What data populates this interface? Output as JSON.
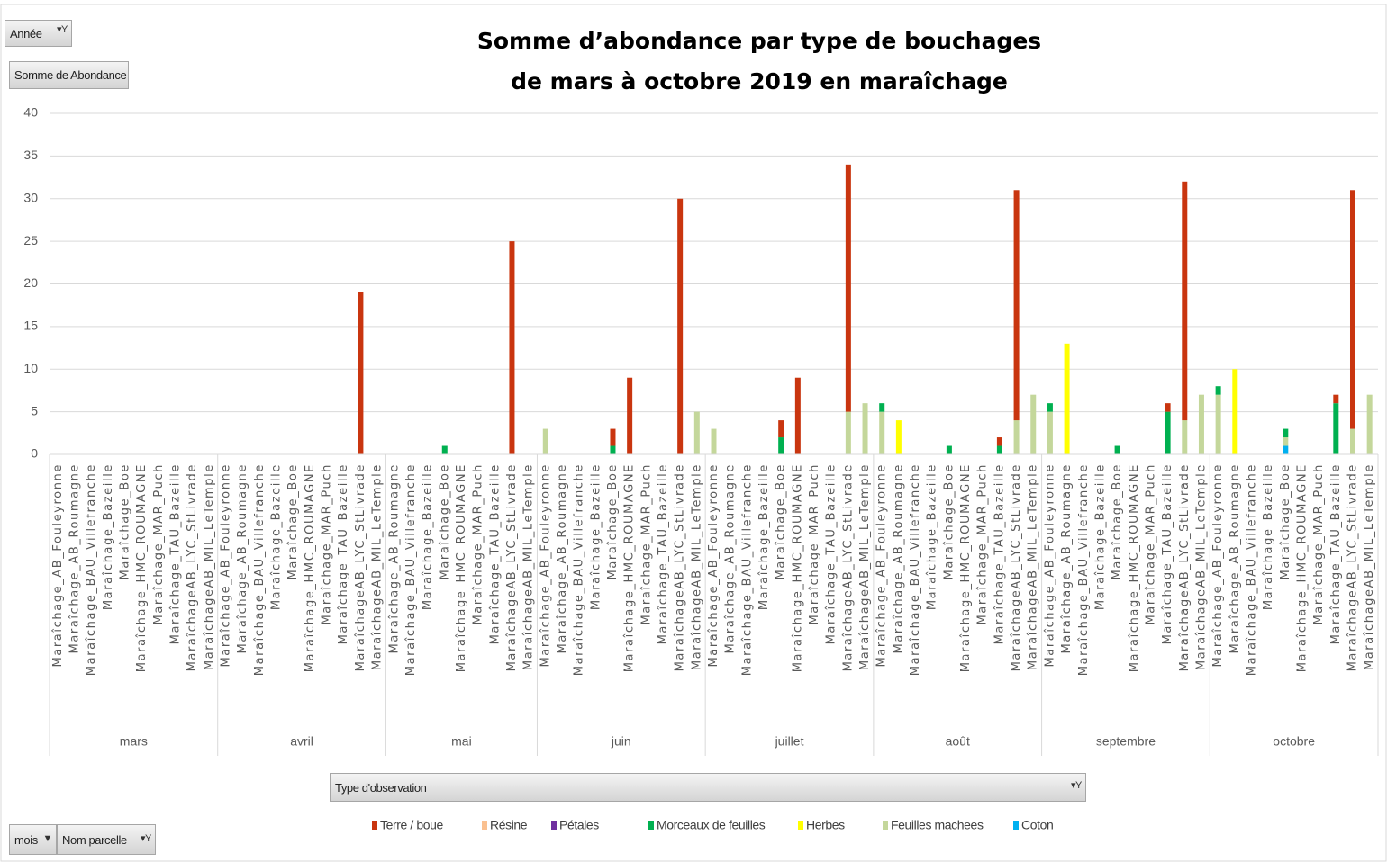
{
  "controls": {
    "year": "Année",
    "value_field": "Somme de Abondance",
    "legend_field": "Type d'observation",
    "row_fields": [
      "mois",
      "Nom parcelle"
    ]
  },
  "chart_data": {
    "type": "stacked_bar",
    "title": [
      "Somme d’abondance par type de bouchages",
      "de mars à octobre 2019 en maraîchage"
    ],
    "category_groups": [
      "mars",
      "avril",
      "mai",
      "juin",
      "juillet",
      "août",
      "septembre",
      "octobre"
    ],
    "categories": [
      [
        "Maraîchage_AB_Fouleyronne",
        "Maraîchage_AB_Roumagne",
        "Maraîchage_BAU_Villefranche",
        "Maraîchage_Bazeille",
        "Maraîchage_Boe",
        "Maraîchage_HMC_ROUMAGNE",
        "Maraîchage_MAR_Puch",
        "Maraîchage_TAU_Bazeille",
        "MaraîchageAB_LYC_StLivrade",
        "MaraîchageAB_MIL_LeTemple"
      ],
      [
        "Maraîchage_AB_Fouleyronne",
        "Maraîchage_AB_Roumagne",
        "Maraîchage_BAU_Villefranche",
        "Maraîchage_Bazeille",
        "Maraîchage_Boe",
        "Maraîchage_HMC_ROUMAGNE",
        "Maraîchage_MAR_Puch",
        "Maraîchage_TAU_Bazeille",
        "MaraîchageAB_LYC_StLivrade",
        "MaraîchageAB_MIL_LeTemple"
      ],
      [
        "Maraîchage_AB_Roumagne",
        "Maraîchage_BAU_Villefranche",
        "Maraîchage_Bazeille",
        "Maraîchage_Boe",
        "Maraîchage_HMC_ROUMAGNE",
        "Maraîchage_MAR_Puch",
        "Maraîchage_TAU_Bazeille",
        "MaraîchageAB_LYC_StLivrade",
        "MaraîchageAB_MIL_LeTemple"
      ],
      [
        "Maraîchage_AB_Fouleyronne",
        "Maraîchage_AB_Roumagne",
        "Maraîchage_BAU_Villefranche",
        "Maraîchage_Bazeille",
        "Maraîchage_Boe",
        "Maraîchage_HMC_ROUMAGNE",
        "Maraîchage_MAR_Puch",
        "Maraîchage_TAU_Bazeille",
        "MaraîchageAB_LYC_StLivrade",
        "MaraîchageAB_MIL_LeTemple"
      ],
      [
        "Maraîchage_AB_Fouleyronne",
        "Maraîchage_AB_Roumagne",
        "Maraîchage_BAU_Villefranche",
        "Maraîchage_Bazeille",
        "Maraîchage_Boe",
        "Maraîchage_HMC_ROUMAGNE",
        "Maraîchage_MAR_Puch",
        "Maraîchage_TAU_Bazeille",
        "MaraîchageAB_LYC_StLivrade",
        "MaraîchageAB_MIL_LeTemple"
      ],
      [
        "Maraîchage_AB_Fouleyronne",
        "Maraîchage_AB_Roumagne",
        "Maraîchage_BAU_Villefranche",
        "Maraîchage_Bazeille",
        "Maraîchage_Boe",
        "Maraîchage_HMC_ROUMAGNE",
        "Maraîchage_MAR_Puch",
        "Maraîchage_TAU_Bazeille",
        "MaraîchageAB_LYC_StLivrade",
        "MaraîchageAB_MIL_LeTemple"
      ],
      [
        "Maraîchage_AB_Fouleyronne",
        "Maraîchage_AB_Roumagne",
        "Maraîchage_BAU_Villefranche",
        "Maraîchage_Bazeille",
        "Maraîchage_Boe",
        "Maraîchage_HMC_ROUMAGNE",
        "Maraîchage_MAR_Puch",
        "Maraîchage_TAU_Bazeille",
        "MaraîchageAB_LYC_StLivrade",
        "MaraîchageAB_MIL_LeTemple"
      ],
      [
        "Maraîchage_AB_Fouleyronne",
        "Maraîchage_AB_Roumagne",
        "Maraîchage_BAU_Villefranche",
        "Maraîchage_Bazeille",
        "Maraîchage_Boe",
        "Maraîchage_HMC_ROUMAGNE",
        "Maraîchage_MAR_Puch",
        "Maraîchage_TAU_Bazeille",
        "MaraîchageAB_LYC_StLivrade",
        "MaraîchageAB_MIL_LeTemple"
      ]
    ],
    "series": [
      {
        "name": "Terre / boue",
        "color": "#c9350f",
        "values": [
          [
            0,
            0,
            0,
            0,
            0,
            0,
            0,
            0,
            0,
            0
          ],
          [
            0,
            0,
            0,
            0,
            0,
            0,
            0,
            0,
            19,
            0
          ],
          [
            0,
            0,
            0,
            0,
            0,
            0,
            0,
            25,
            0
          ],
          [
            0,
            0,
            0,
            0,
            2,
            9,
            0,
            0,
            30,
            0
          ],
          [
            0,
            0,
            0,
            0,
            2,
            9,
            0,
            0,
            29,
            0
          ],
          [
            0,
            0,
            0,
            0,
            0,
            0,
            0,
            1,
            27,
            0
          ],
          [
            0,
            0,
            0,
            0,
            0,
            0,
            0,
            1,
            28,
            0
          ],
          [
            0,
            0,
            0,
            0,
            0,
            0,
            0,
            1,
            28,
            0
          ]
        ]
      },
      {
        "name": "Résine",
        "color": "#fac090",
        "values": [
          [
            0,
            0,
            0,
            0,
            0,
            0,
            0,
            0,
            0,
            0
          ],
          [
            0,
            0,
            0,
            0,
            0,
            0,
            0,
            0,
            0,
            0
          ],
          [
            0,
            0,
            0,
            0,
            0,
            0,
            0,
            0,
            0
          ],
          [
            0,
            0,
            0,
            0,
            0,
            0,
            0,
            0,
            0,
            0
          ],
          [
            0,
            0,
            0,
            0,
            0,
            0,
            0,
            0,
            0,
            0
          ],
          [
            0,
            0,
            0,
            0,
            0,
            0,
            0,
            0,
            0,
            0
          ],
          [
            0,
            0,
            0,
            0,
            0,
            0,
            0,
            0,
            0,
            0
          ],
          [
            0,
            0,
            0,
            0,
            0,
            0,
            0,
            0,
            0,
            0
          ]
        ]
      },
      {
        "name": "Pétales",
        "color": "#7030a0",
        "values": [
          [
            0,
            0,
            0,
            0,
            0,
            0,
            0,
            0,
            0,
            0
          ],
          [
            0,
            0,
            0,
            0,
            0,
            0,
            0,
            0,
            0,
            0
          ],
          [
            0,
            0,
            0,
            0,
            0,
            0,
            0,
            0,
            0
          ],
          [
            0,
            0,
            0,
            0,
            0,
            0,
            0,
            0,
            0,
            0
          ],
          [
            0,
            0,
            0,
            0,
            0,
            0,
            0,
            0,
            0,
            0
          ],
          [
            0,
            0,
            0,
            0,
            0,
            0,
            0,
            0,
            0,
            0
          ],
          [
            0,
            0,
            0,
            0,
            0,
            0,
            0,
            0,
            0,
            0
          ],
          [
            0,
            0,
            0,
            0,
            0,
            0,
            0,
            0,
            0,
            0
          ]
        ]
      },
      {
        "name": "Morceaux de feuilles",
        "color": "#00b050",
        "values": [
          [
            0,
            0,
            0,
            0,
            0,
            0,
            0,
            0,
            0,
            0
          ],
          [
            0,
            0,
            0,
            0,
            0,
            0,
            0,
            0,
            0,
            0
          ],
          [
            0,
            0,
            0,
            1,
            0,
            0,
            0,
            0,
            0
          ],
          [
            0,
            0,
            0,
            0,
            1,
            0,
            0,
            0,
            0,
            0
          ],
          [
            0,
            0,
            0,
            0,
            2,
            0,
            0,
            0,
            0,
            0
          ],
          [
            1,
            0,
            0,
            0,
            1,
            0,
            0,
            1,
            0,
            0
          ],
          [
            1,
            0,
            0,
            0,
            1,
            0,
            0,
            5,
            0,
            0
          ],
          [
            1,
            0,
            0,
            0,
            1,
            0,
            0,
            6,
            0,
            0
          ]
        ]
      },
      {
        "name": "Herbes",
        "color": "#ffff00",
        "values": [
          [
            0,
            0,
            0,
            0,
            0,
            0,
            0,
            0,
            0,
            0
          ],
          [
            0,
            0,
            0,
            0,
            0,
            0,
            0,
            0,
            0,
            0
          ],
          [
            0,
            0,
            0,
            0,
            0,
            0,
            0,
            0,
            0
          ],
          [
            0,
            0,
            0,
            0,
            0,
            0,
            0,
            0,
            0,
            0
          ],
          [
            0,
            0,
            0,
            0,
            0,
            0,
            0,
            0,
            0,
            0
          ],
          [
            0,
            4,
            0,
            0,
            0,
            0,
            0,
            0,
            0,
            0
          ],
          [
            0,
            13,
            0,
            0,
            0,
            0,
            0,
            0,
            0,
            0
          ],
          [
            0,
            10,
            0,
            0,
            0,
            0,
            0,
            0,
            0,
            0
          ]
        ]
      },
      {
        "name": "Feuilles machees",
        "color": "#c4d79b",
        "values": [
          [
            0,
            0,
            0,
            0,
            0,
            0,
            0,
            0,
            0,
            0
          ],
          [
            0,
            0,
            0,
            0,
            0,
            0,
            0,
            0,
            0,
            0
          ],
          [
            0,
            0,
            0,
            0,
            0,
            0,
            0,
            0,
            0
          ],
          [
            3,
            0,
            0,
            0,
            0,
            0,
            0,
            0,
            0,
            5
          ],
          [
            3,
            0,
            0,
            0,
            0,
            0,
            0,
            0,
            5,
            6
          ],
          [
            5,
            0,
            0,
            0,
            0,
            0,
            0,
            0,
            4,
            7
          ],
          [
            5,
            0,
            0,
            0,
            0,
            0,
            0,
            0,
            4,
            7
          ],
          [
            7,
            0,
            0,
            0,
            1,
            0,
            0,
            0,
            3,
            7
          ]
        ]
      },
      {
        "name": "Coton",
        "color": "#00b0f0",
        "values": [
          [
            0,
            0,
            0,
            0,
            0,
            0,
            0,
            0,
            0,
            0
          ],
          [
            0,
            0,
            0,
            0,
            0,
            0,
            0,
            0,
            0,
            0
          ],
          [
            0,
            0,
            0,
            0,
            0,
            0,
            0,
            0,
            0
          ],
          [
            0,
            0,
            0,
            0,
            0,
            0,
            0,
            0,
            0,
            0
          ],
          [
            0,
            0,
            0,
            0,
            0,
            0,
            0,
            0,
            0,
            0
          ],
          [
            0,
            0,
            0,
            0,
            0,
            0,
            0,
            0,
            0,
            0
          ],
          [
            0,
            0,
            0,
            0,
            0,
            0,
            0,
            0,
            0,
            0
          ],
          [
            0,
            0,
            0,
            0,
            1,
            0,
            0,
            0,
            0,
            0
          ]
        ]
      }
    ],
    "ylim": [
      0,
      40
    ],
    "yticks": [
      0,
      5,
      10,
      15,
      20,
      25,
      30,
      35,
      40
    ],
    "grid": true,
    "legend": "bottom"
  }
}
